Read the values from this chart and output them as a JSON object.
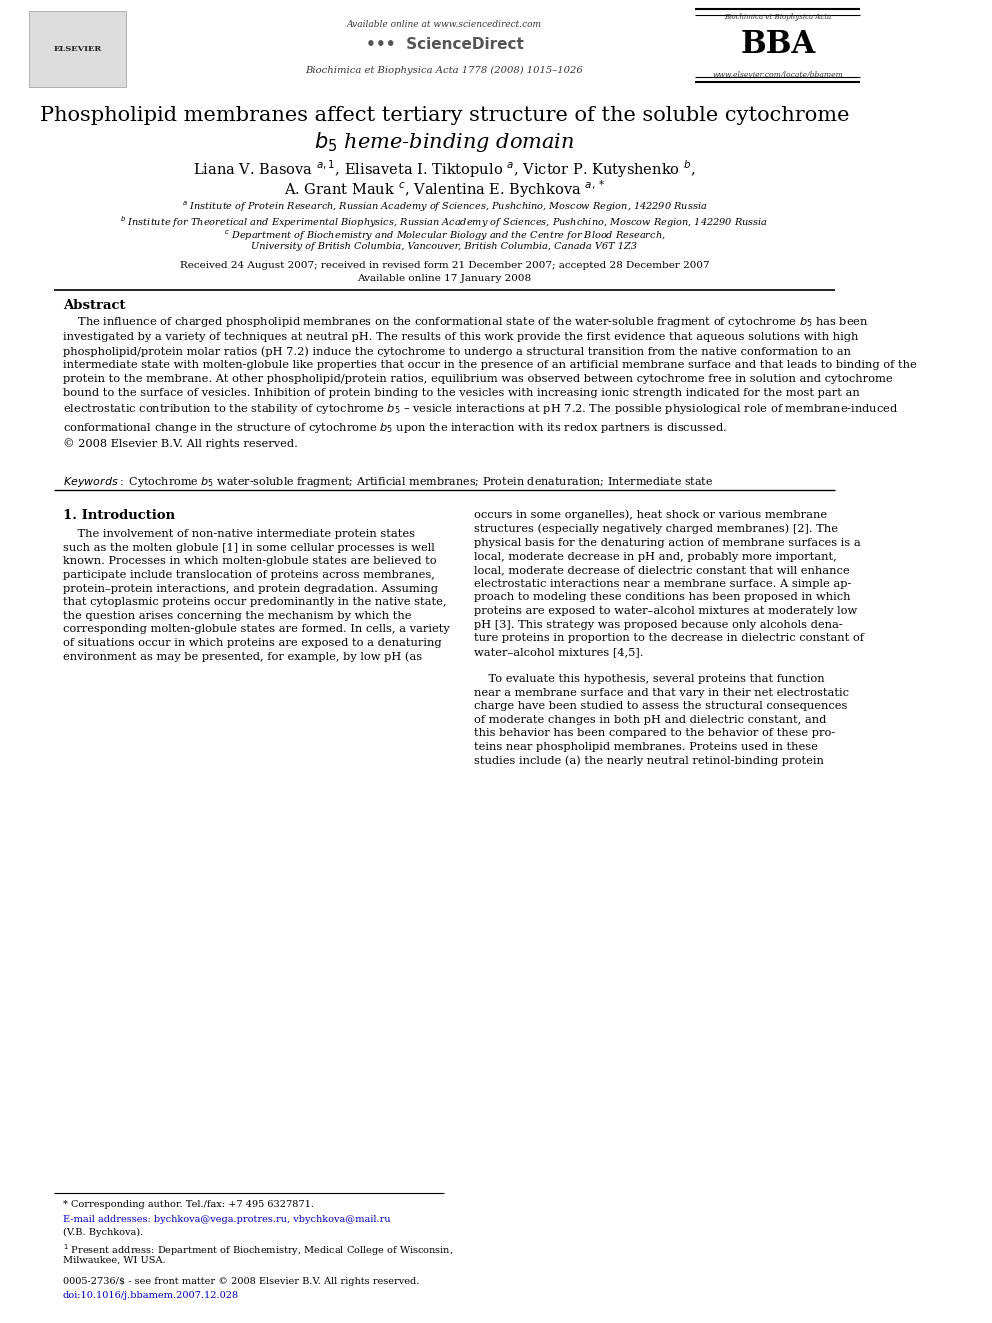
{
  "bg_color": "#ffffff",
  "page_width": 9.92,
  "page_height": 13.23,
  "header": {
    "available_online": "Available online at www.sciencedirect.com",
    "journal_line": "Biochimica et Biophysica Acta 1778 (2008) 1015–1026",
    "website": "www.elsevier.com/locate/bbamem",
    "bba_text": "Biochimica et Biophysica Acta",
    "bba_logo": "BBA"
  },
  "title_line1": "Phospholipid membranes affect tertiary structure of the soluble cytochrome",
  "title_line2": "$b_5$ heme-binding domain",
  "affil_a": "$^{a}$ Institute of Protein Research, Russian Academy of Sciences, Pushchino, Moscow Region, 142290 Russia",
  "affil_b": "$^{b}$ Institute for Theoretical and Experimental Biophysics, Russian Academy of Sciences, Pushchino, Moscow Region, 142290 Russia",
  "affil_c1": "$^{c}$ Department of Biochemistry and Molecular Biology and the Centre for Blood Research,",
  "affil_c2": "University of British Columbia, Vancouver, British Columbia, Canada V6T 1Z3",
  "received": "Received 24 August 2007; received in revised form 21 December 2007; accepted 28 December 2007",
  "available_online2": "Available online 17 January 2008",
  "abstract_title": "Abstract",
  "keywords_text": "Cytochrome $b_5$ water-soluble fragment; Artificial membranes; Protein denaturation; Intermediate state",
  "section1_title": "1. Introduction",
  "footnote_star": "* Corresponding author. Tel./fax: +7 495 6327871.",
  "footer_left": "0005-2736/$ - see front matter © 2008 Elsevier B.V. All rights reserved.",
  "footer_doi": "doi:10.1016/j.bbamem.2007.12.028"
}
